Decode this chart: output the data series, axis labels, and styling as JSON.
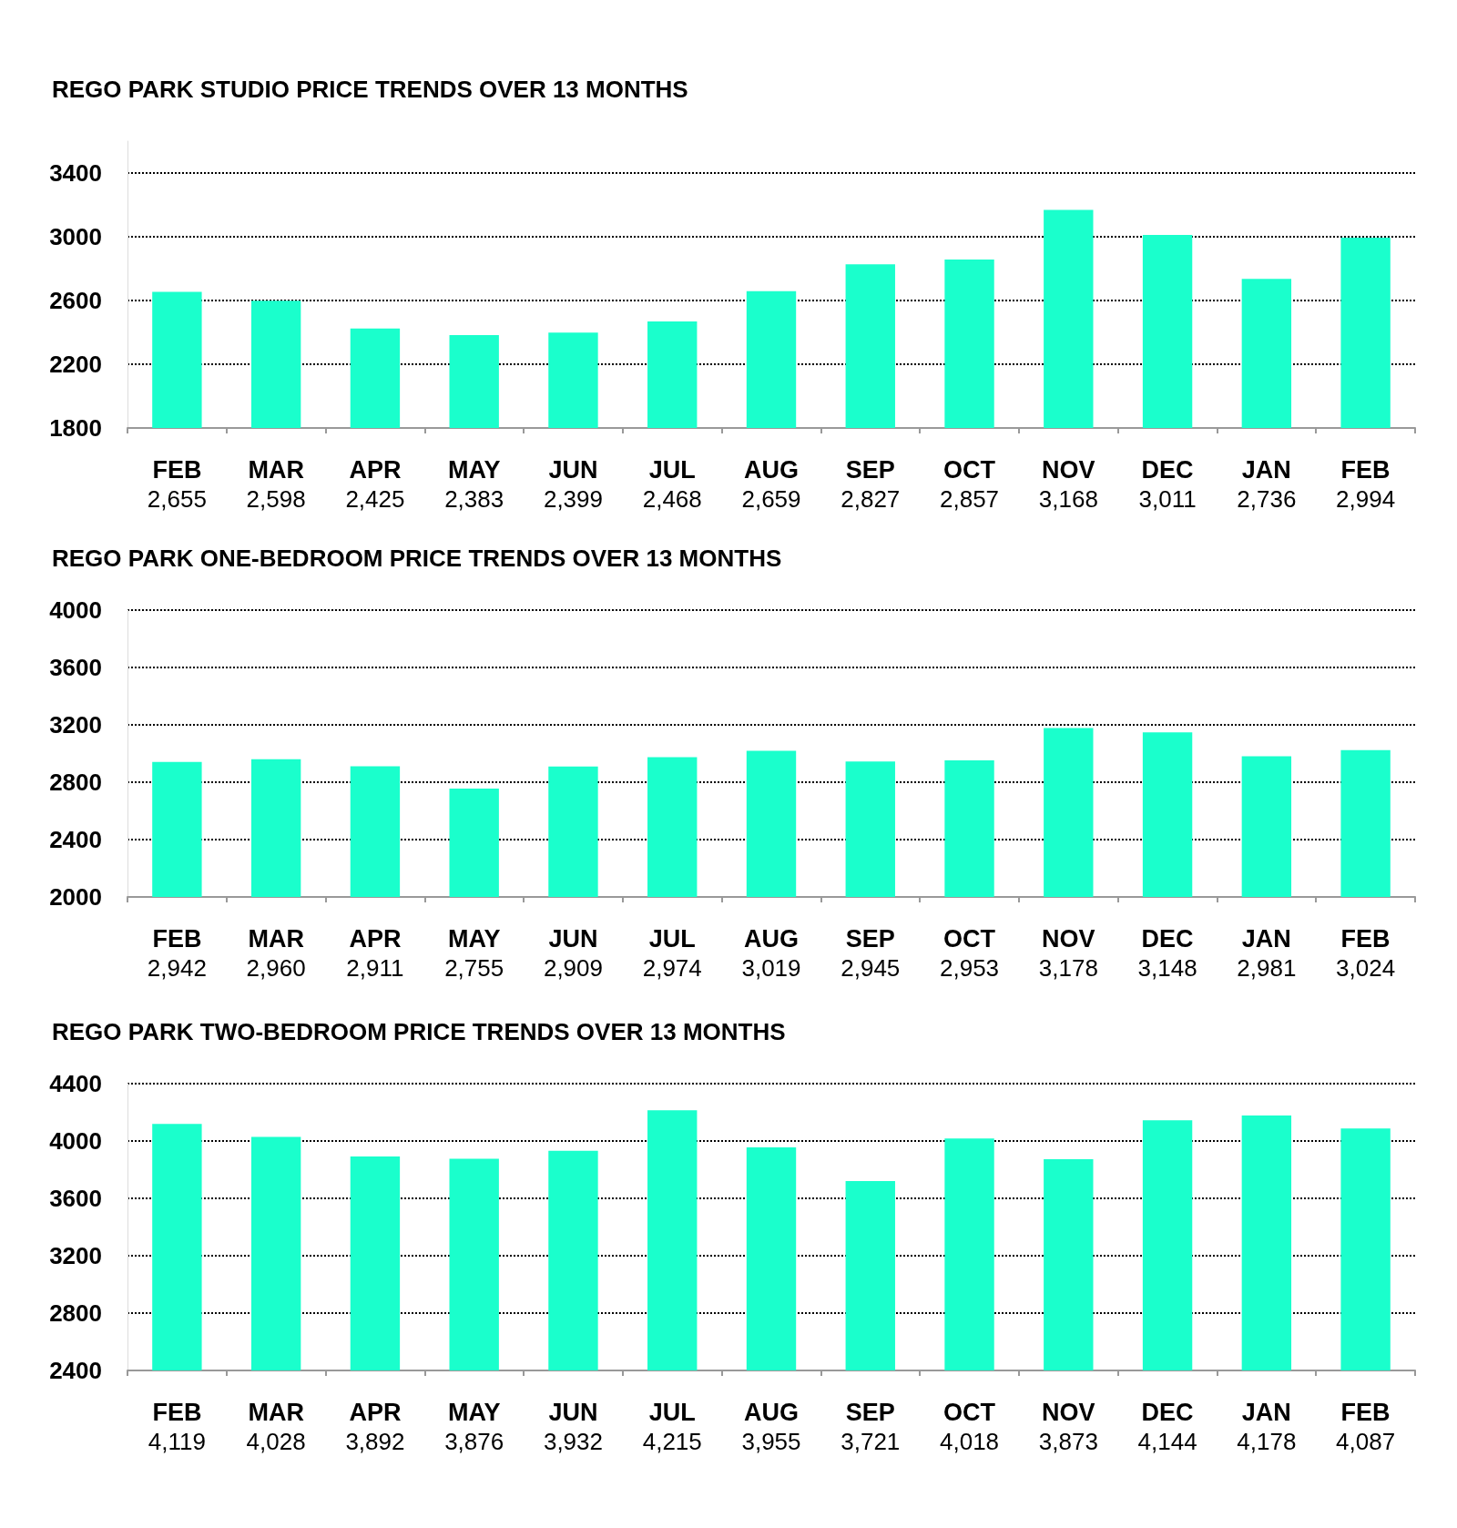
{
  "chart_data": [
    {
      "type": "bar",
      "title": "REGO PARK STUDIO PRICE TRENDS OVER 13 MONTHS",
      "categories": [
        "FEB",
        "MAR",
        "APR",
        "MAY",
        "JUN",
        "JUL",
        "AUG",
        "SEP",
        "OCT",
        "NOV",
        "DEC",
        "JAN",
        "FEB"
      ],
      "values": [
        2655,
        2598,
        2425,
        2383,
        2399,
        2468,
        2659,
        2827,
        2857,
        3168,
        3011,
        2736,
        2994
      ],
      "value_labels": [
        "2,655",
        "2,598",
        "2,425",
        "2,383",
        "2,399",
        "2,468",
        "2,659",
        "2,827",
        "2,857",
        "3,168",
        "3,011",
        "2,736",
        "2,994"
      ],
      "color": "#1affcc",
      "ylim": [
        1800,
        3600
      ],
      "yticks": [
        1800,
        2200,
        2600,
        3000,
        3400
      ],
      "grid": "y"
    },
    {
      "type": "bar",
      "title": "REGO PARK ONE-BEDROOM PRICE TRENDS OVER 13 MONTHS",
      "categories": [
        "FEB",
        "MAR",
        "APR",
        "MAY",
        "JUN",
        "JUL",
        "AUG",
        "SEP",
        "OCT",
        "NOV",
        "DEC",
        "JAN",
        "FEB"
      ],
      "values": [
        2942,
        2960,
        2911,
        2755,
        2909,
        2974,
        3019,
        2945,
        2953,
        3178,
        3148,
        2981,
        3024
      ],
      "value_labels": [
        "2,942",
        "2,960",
        "2,911",
        "2,755",
        "2,909",
        "2,974",
        "3,019",
        "2,945",
        "2,953",
        "3,178",
        "3,148",
        "2,981",
        "3,024"
      ],
      "color": "#1affcc",
      "ylim": [
        2000,
        4000
      ],
      "yticks": [
        2000,
        2400,
        2800,
        3200,
        3600,
        4000
      ],
      "grid": "y"
    },
    {
      "type": "bar",
      "title": "REGO PARK TWO-BEDROOM PRICE TRENDS OVER 13 MONTHS",
      "categories": [
        "FEB",
        "MAR",
        "APR",
        "MAY",
        "JUN",
        "JUL",
        "AUG",
        "SEP",
        "OCT",
        "NOV",
        "DEC",
        "JAN",
        "FEB"
      ],
      "values": [
        4119,
        4028,
        3892,
        3876,
        3932,
        4215,
        3955,
        3721,
        4018,
        3873,
        4144,
        4178,
        4087
      ],
      "value_labels": [
        "4,119",
        "4,028",
        "3,892",
        "3,876",
        "3,932",
        "4,215",
        "3,955",
        "3,721",
        "4,018",
        "3,873",
        "4,144",
        "4,178",
        "4,087"
      ],
      "color": "#1affcc",
      "ylim": [
        2400,
        4400
      ],
      "yticks": [
        2400,
        2800,
        3200,
        3600,
        4000,
        4400
      ],
      "grid": "y"
    }
  ]
}
